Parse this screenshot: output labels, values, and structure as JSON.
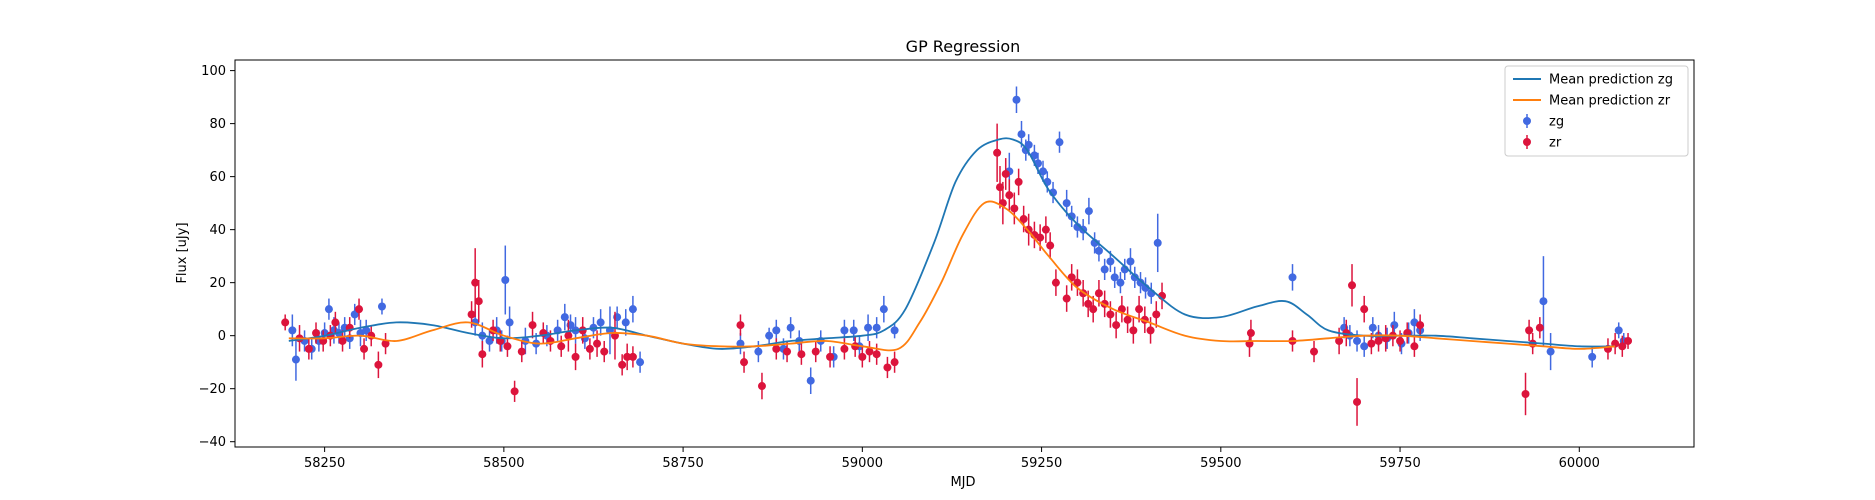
{
  "chart_data": {
    "type": "scatter",
    "title": "GP Regression",
    "xlabel": "MJD",
    "ylabel": "Flux [uJy]",
    "xlim": [
      58125,
      60160
    ],
    "ylim": [
      -42,
      104
    ],
    "x_ticks": [
      58250,
      58500,
      58750,
      59000,
      59250,
      59500,
      59750,
      60000
    ],
    "y_ticks": [
      -40,
      -20,
      0,
      20,
      40,
      60,
      80,
      100
    ],
    "grid": false,
    "legend_position": "top-right",
    "legend": [
      {
        "label": "Mean prediction zg",
        "kind": "line",
        "color": "#1f77b4"
      },
      {
        "label": "Mean prediction zr",
        "kind": "line",
        "color": "#ff7f0e"
      },
      {
        "label": "zg",
        "kind": "errorbar",
        "color": "#4169e1"
      },
      {
        "label": "zr",
        "kind": "errorbar",
        "color": "#dc143c"
      }
    ],
    "series": [
      {
        "name": "Mean prediction zg",
        "type": "line",
        "color": "#1f77b4",
        "x": [
          58200,
          58250,
          58300,
          58350,
          58400,
          58450,
          58500,
          58550,
          58600,
          58650,
          58700,
          58750,
          58800,
          58850,
          58900,
          58950,
          59000,
          59030,
          59060,
          59100,
          59130,
          59160,
          59190,
          59210,
          59230,
          59260,
          59300,
          59350,
          59400,
          59450,
          59500,
          59550,
          59590,
          59620,
          59650,
          59700,
          59750,
          59800,
          59850,
          59900,
          59950,
          60000,
          60050
        ],
        "y": [
          -2,
          0,
          3,
          5,
          4,
          1,
          -1,
          0,
          2,
          3,
          0,
          -3,
          -5,
          -4,
          -2,
          -1,
          0,
          2,
          10,
          35,
          58,
          70,
          74,
          74,
          70,
          55,
          42,
          30,
          18,
          8,
          7,
          11,
          13,
          8,
          2,
          0,
          0,
          0,
          -1,
          -2,
          -3,
          -4,
          -4
        ]
      },
      {
        "name": "Mean prediction zr",
        "type": "line",
        "color": "#ff7f0e",
        "x": [
          58200,
          58250,
          58300,
          58350,
          58400,
          58450,
          58500,
          58550,
          58600,
          58650,
          58700,
          58750,
          58800,
          58850,
          58900,
          58950,
          59000,
          59050,
          59080,
          59110,
          59140,
          59170,
          59200,
          59230,
          59260,
          59300,
          59350,
          59400,
          59450,
          59500,
          59550,
          59600,
          59650,
          59700,
          59750,
          59800,
          59850,
          59900,
          59950,
          60000,
          60050
        ],
        "y": [
          -1,
          -1,
          0,
          -2,
          2,
          5,
          0,
          -3,
          -1,
          1,
          0,
          -3,
          -4,
          -4,
          -3,
          -2,
          -4,
          -5,
          5,
          20,
          38,
          50,
          48,
          40,
          30,
          18,
          10,
          5,
          0,
          -2,
          -2,
          -2,
          -1,
          0,
          0,
          -1,
          -2,
          -3,
          -4,
          -5,
          -4
        ]
      },
      {
        "name": "zg",
        "type": "errorbar",
        "color": "#4169e1",
        "x": [
          58205,
          58210,
          58222,
          58232,
          58242,
          58250,
          58256,
          58263,
          58270,
          58278,
          58285,
          58292,
          58300,
          58308,
          58330,
          58460,
          58470,
          58480,
          58490,
          58497,
          58502,
          58508,
          58530,
          58545,
          58560,
          58575,
          58585,
          58593,
          58600,
          58613,
          58625,
          58635,
          58648,
          58658,
          58670,
          58680,
          58690,
          58830,
          58855,
          58870,
          58880,
          58890,
          58900,
          58912,
          58928,
          58942,
          58960,
          58975,
          58988,
          58996,
          59008,
          59020,
          59030,
          59045,
          59205,
          59215,
          59222,
          59228,
          59232,
          59240,
          59245,
          59252,
          59258,
          59266,
          59275,
          59285,
          59292,
          59300,
          59308,
          59316,
          59324,
          59330,
          59338,
          59346,
          59352,
          59360,
          59366,
          59374,
          59380,
          59388,
          59395,
          59403,
          59412,
          59600,
          59672,
          59680,
          59690,
          59700,
          59712,
          59720,
          59732,
          59742,
          59752,
          59762,
          59770,
          59778,
          59950,
          59960,
          60018,
          60055,
          60062
        ],
        "y": [
          2,
          -9,
          -2,
          -5,
          -2,
          1,
          10,
          2,
          1,
          3,
          -1,
          8,
          1,
          2,
          11,
          5,
          0,
          -2,
          2,
          -2,
          21,
          5,
          -2,
          -3,
          0,
          2,
          7,
          4,
          2,
          -1,
          3,
          5,
          2,
          7,
          5,
          10,
          -10,
          -3,
          -6,
          0,
          2,
          -5,
          3,
          -2,
          -17,
          -2,
          -8,
          2,
          2,
          -4,
          3,
          3,
          10,
          2,
          62,
          89,
          76,
          70,
          72,
          68,
          65,
          62,
          58,
          54,
          73,
          50,
          45,
          41,
          40,
          47,
          35,
          32,
          25,
          28,
          22,
          20,
          25,
          28,
          22,
          20,
          18,
          16,
          35,
          22,
          3,
          0,
          -2,
          -4,
          3,
          0,
          -1,
          4,
          -3,
          1,
          5,
          2,
          13,
          -6,
          -8,
          2,
          -2
        ],
        "yerr": [
          6,
          8,
          4,
          4,
          4,
          4,
          4,
          5,
          4,
          4,
          4,
          4,
          5,
          4,
          3,
          5,
          5,
          4,
          5,
          4,
          13,
          6,
          5,
          4,
          4,
          4,
          5,
          4,
          5,
          4,
          4,
          5,
          9,
          4,
          5,
          5,
          4,
          4,
          4,
          3,
          4,
          4,
          4,
          4,
          5,
          4,
          4,
          4,
          4,
          4,
          5,
          4,
          5,
          3,
          7,
          5,
          5,
          4,
          4,
          4,
          4,
          4,
          4,
          4,
          4,
          5,
          4,
          4,
          4,
          5,
          4,
          4,
          4,
          4,
          4,
          4,
          4,
          5,
          4,
          4,
          4,
          4,
          11,
          5,
          4,
          4,
          4,
          4,
          4,
          4,
          4,
          5,
          4,
          4,
          5,
          4,
          17,
          7,
          4,
          3,
          3
        ]
      },
      {
        "name": "zr",
        "type": "errorbar",
        "color": "#dc143c",
        "x": [
          58195,
          58215,
          58228,
          58238,
          58248,
          58258,
          58265,
          58275,
          58285,
          58298,
          58305,
          58315,
          58325,
          58335,
          58455,
          58460,
          58465,
          58470,
          58485,
          58495,
          58505,
          58515,
          58525,
          58540,
          58555,
          58565,
          58580,
          58590,
          58600,
          58610,
          58620,
          58630,
          58640,
          58655,
          58665,
          58672,
          58680,
          58830,
          58835,
          58860,
          58880,
          58895,
          58915,
          58935,
          58955,
          58975,
          58990,
          59000,
          59010,
          59020,
          59035,
          59045,
          59188,
          59192,
          59196,
          59200,
          59205,
          59212,
          59218,
          59225,
          59232,
          59240,
          59248,
          59256,
          59262,
          59270,
          59285,
          59292,
          59300,
          59308,
          59315,
          59322,
          59330,
          59338,
          59346,
          59354,
          59362,
          59370,
          59378,
          59386,
          59394,
          59402,
          59410,
          59418,
          59540,
          59542,
          59600,
          59630,
          59665,
          59675,
          59683,
          59690,
          59700,
          59710,
          59720,
          59730,
          59740,
          59750,
          59760,
          59770,
          59778,
          59925,
          59930,
          59935,
          59945,
          60040,
          60050,
          60060,
          60068
        ],
        "y": [
          5,
          -1,
          -5,
          1,
          -2,
          0,
          5,
          -2,
          3,
          10,
          -5,
          0,
          -11,
          -3,
          8,
          20,
          13,
          -7,
          2,
          -2,
          -4,
          -21,
          -6,
          4,
          1,
          -2,
          -4,
          0,
          -8,
          2,
          -5,
          -3,
          -6,
          0,
          -11,
          -8,
          -8,
          4,
          -10,
          -19,
          -5,
          -6,
          -7,
          -6,
          -8,
          -5,
          -4,
          -8,
          -6,
          -7,
          -12,
          -10,
          69,
          56,
          50,
          61,
          53,
          48,
          58,
          44,
          40,
          38,
          37,
          40,
          34,
          20,
          14,
          22,
          20,
          16,
          12,
          10,
          16,
          12,
          8,
          4,
          10,
          6,
          2,
          10,
          6,
          2,
          8,
          15,
          -3,
          1,
          -2,
          -6,
          -2,
          1,
          19,
          -25,
          10,
          -3,
          -2,
          -1,
          0,
          -2,
          1,
          -4,
          4,
          -22,
          2,
          -3,
          3,
          -5,
          -3,
          -4,
          -2
        ],
        "yerr": [
          3,
          5,
          4,
          4,
          4,
          4,
          4,
          4,
          4,
          4,
          4,
          4,
          5,
          4,
          5,
          13,
          8,
          5,
          4,
          4,
          4,
          4,
          4,
          5,
          4,
          4,
          4,
          6,
          5,
          5,
          4,
          5,
          4,
          9,
          4,
          5,
          4,
          4,
          4,
          5,
          4,
          4,
          4,
          4,
          4,
          4,
          4,
          4,
          4,
          4,
          4,
          4,
          11,
          8,
          8,
          6,
          6,
          6,
          5,
          5,
          6,
          5,
          5,
          5,
          5,
          5,
          5,
          5,
          5,
          5,
          5,
          5,
          5,
          5,
          5,
          5,
          5,
          5,
          5,
          5,
          5,
          5,
          5,
          5,
          5,
          5,
          4,
          4,
          5,
          5,
          8,
          9,
          5,
          4,
          4,
          5,
          4,
          4,
          4,
          4,
          4,
          8,
          4,
          4,
          4,
          4,
          4,
          4,
          3
        ]
      }
    ]
  }
}
